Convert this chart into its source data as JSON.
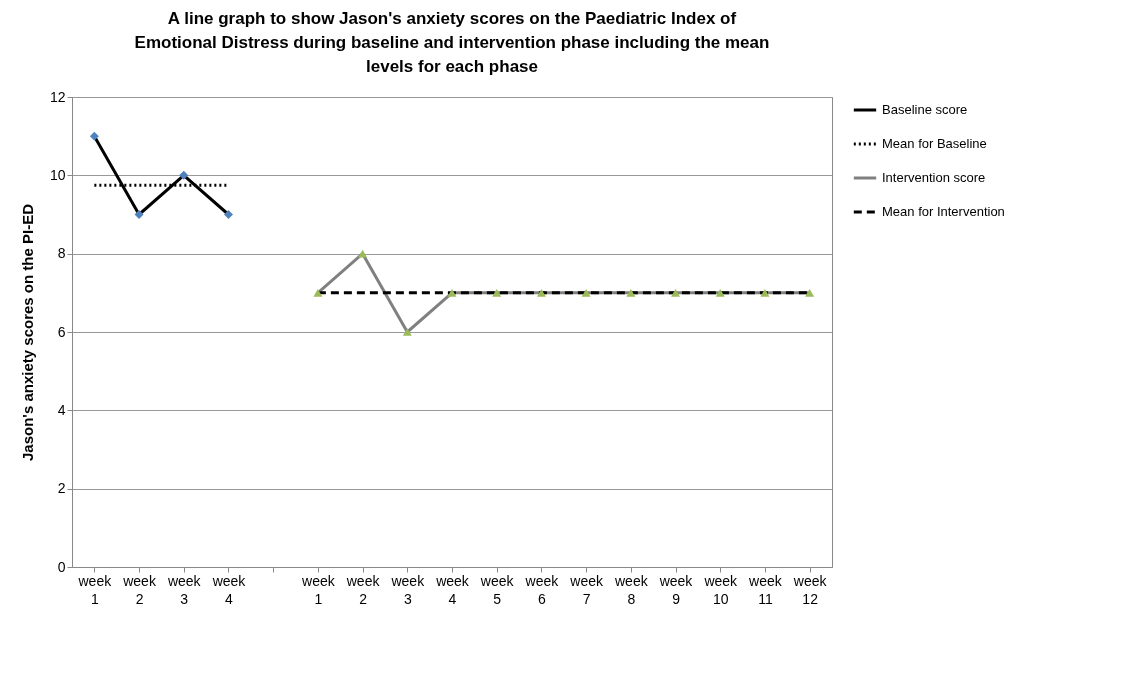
{
  "chart_data": {
    "type": "line",
    "title": "A line graph to show Jason's anxiety scores on the Paediatric Index of Emotional Distress during baseline and intervention phase including the mean levels for each phase",
    "ylabel": "Jason's anxiety scores on the PI-ED",
    "categories": [
      "week 1",
      "week 2",
      "week 3",
      "week 4",
      null,
      "week 1",
      "week 2",
      "week 3",
      "week 4",
      "week 5",
      "week 6",
      "week 7",
      "week 8",
      "week 9",
      "week 10",
      "week 11",
      "week 12"
    ],
    "series": [
      {
        "name": "Baseline score",
        "color": "#000000",
        "marker": "diamond",
        "colors": [
          "#4f81bd",
          "#4f81bd",
          "#4f81bd",
          "#4f81bd",
          null,
          null,
          null,
          null,
          null,
          null,
          null,
          null,
          null,
          null,
          null,
          null,
          null
        ],
        "line_style": "solid",
        "values": [
          11,
          9,
          10,
          9,
          null,
          null,
          null,
          null,
          null,
          null,
          null,
          null,
          null,
          null,
          null,
          null,
          null
        ]
      },
      {
        "name": "Mean for Baseline",
        "color": "#000000",
        "marker": "none",
        "line_style": "dotted",
        "values": [
          9.75,
          9.75,
          9.75,
          9.75,
          null,
          null,
          null,
          null,
          null,
          null,
          null,
          null,
          null,
          null,
          null,
          null,
          null
        ]
      },
      {
        "name": "Intervention score",
        "color": "#808080",
        "marker": "triangle",
        "colors": [
          null,
          null,
          null,
          null,
          null,
          "#9bbb59",
          "#9bbb59",
          "#9bbb59",
          "#9bbb59",
          "#9bbb59",
          "#9bbb59",
          "#9bbb59",
          "#9bbb59",
          "#9bbb59",
          "#9bbb59",
          "#9bbb59",
          "#9bbb59"
        ],
        "line_style": "solid",
        "values": [
          null,
          null,
          null,
          null,
          null,
          7,
          8,
          6,
          7,
          7,
          7,
          7,
          7,
          7,
          7,
          7,
          7
        ]
      },
      {
        "name": "Mean for Intervention",
        "color": "#000000",
        "marker": "none",
        "line_style": "dashed",
        "values": [
          null,
          null,
          null,
          null,
          null,
          7,
          7,
          7,
          7,
          7,
          7,
          7,
          7,
          7,
          7,
          7,
          7
        ]
      }
    ],
    "ylim": [
      0,
      12
    ],
    "yticks": [
      0,
      2,
      4,
      6,
      8,
      10,
      12
    ],
    "grid": "y",
    "legend": "right"
  }
}
